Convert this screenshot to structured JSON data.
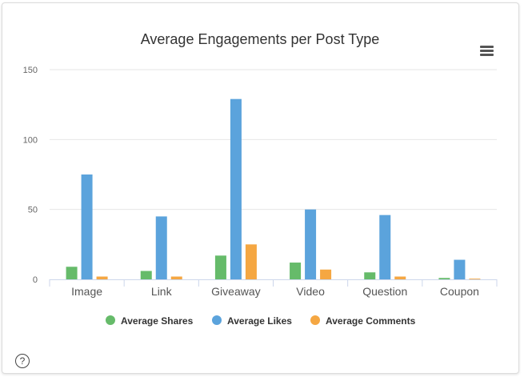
{
  "chart_data": {
    "type": "bar",
    "title": "Average Engagements per Post Type",
    "categories": [
      "Image",
      "Link",
      "Giveaway",
      "Video",
      "Question",
      "Coupon"
    ],
    "series": [
      {
        "name": "Average Shares",
        "color": "#66bb6a",
        "values": [
          9,
          6,
          17,
          12,
          5,
          1
        ]
      },
      {
        "name": "Average Likes",
        "color": "#5ba3dc",
        "values": [
          75,
          45,
          129,
          50,
          46,
          14
        ]
      },
      {
        "name": "Average Comments",
        "color": "#f5a742",
        "values": [
          2,
          2,
          25,
          7,
          2,
          0.5
        ]
      }
    ],
    "ylim": [
      0,
      150
    ],
    "yticks": [
      "0",
      "50",
      "100",
      "150"
    ],
    "grid": true,
    "legend_position": "bottom"
  },
  "icons": {
    "menu": "hamburger-menu-icon",
    "help": "question-circle-icon"
  },
  "help_symbol": "?"
}
